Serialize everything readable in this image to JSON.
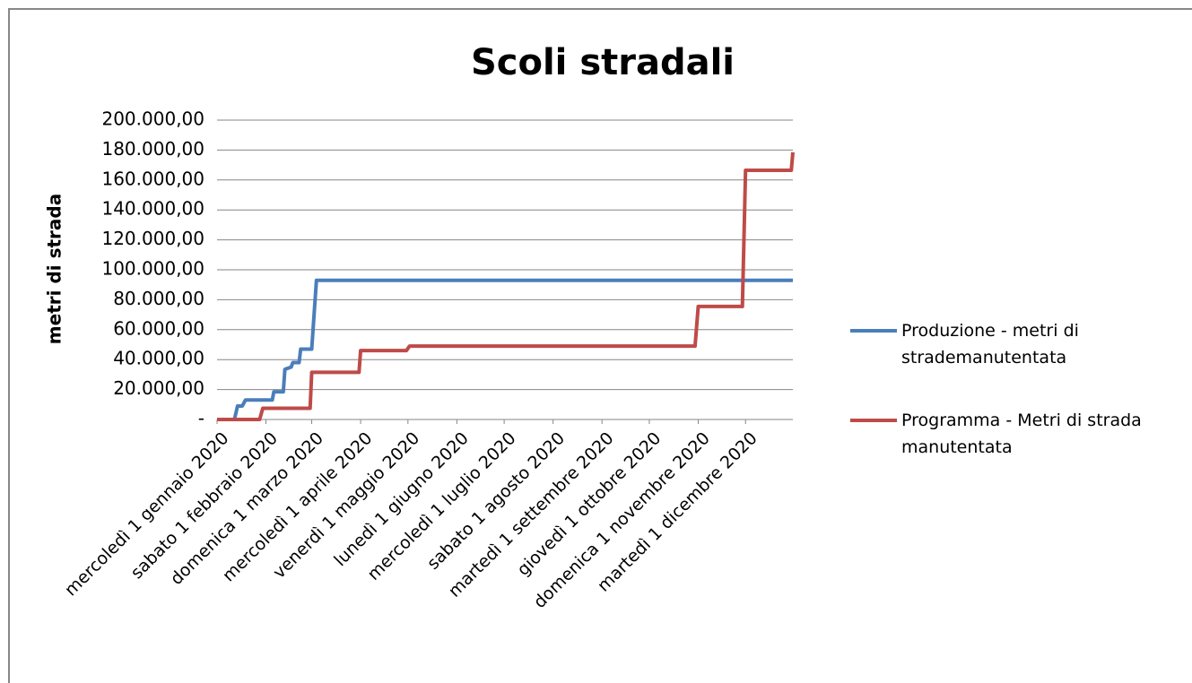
{
  "chart_data": {
    "type": "line",
    "title": "Scoli stradali",
    "y_label": "metri di strada",
    "xlim": [
      "2020-01-01",
      "2020-12-31"
    ],
    "xticks": [
      {
        "value": "2020-01-01",
        "label": "mercoledì 1 gennaio 2020"
      },
      {
        "value": "2020-02-01",
        "label": "sabato 1 febbraio 2020"
      },
      {
        "value": "2020-03-01",
        "label": "domenica 1 marzo 2020"
      },
      {
        "value": "2020-04-01",
        "label": "mercoledì 1 aprile 2020"
      },
      {
        "value": "2020-05-01",
        "label": "venerdì 1 maggio 2020"
      },
      {
        "value": "2020-06-01",
        "label": "lunedì 1 giugno 2020"
      },
      {
        "value": "2020-07-01",
        "label": "mercoledì 1 luglio 2020"
      },
      {
        "value": "2020-08-01",
        "label": "sabato 1 agosto 2020"
      },
      {
        "value": "2020-09-01",
        "label": "martedì 1 settembre 2020"
      },
      {
        "value": "2020-10-01",
        "label": "giovedì 1 ottobre 2020"
      },
      {
        "value": "2020-11-01",
        "label": "domenica 1 novembre 2020"
      },
      {
        "value": "2020-12-01",
        "label": "martedì 1 dicembre 2020"
      }
    ],
    "ylim": [
      0,
      200000
    ],
    "yticks": [
      {
        "value": 0,
        "label": "-"
      },
      {
        "value": 20000,
        "label": "20.000,00"
      },
      {
        "value": 40000,
        "label": "40.000,00"
      },
      {
        "value": 60000,
        "label": "60.000,00"
      },
      {
        "value": 80000,
        "label": "80.000,00"
      },
      {
        "value": 100000,
        "label": "100.000,00"
      },
      {
        "value": 120000,
        "label": "120.000,00"
      },
      {
        "value": 140000,
        "label": "140.000,00"
      },
      {
        "value": 160000,
        "label": "160.000,00"
      },
      {
        "value": 180000,
        "label": "180.000,00"
      },
      {
        "value": 200000,
        "label": "200.000,00"
      }
    ],
    "grid": true,
    "legend": "right",
    "series": [
      {
        "name": "Produzione - metri di strademanutentata",
        "color": "#4a7ebb",
        "x": [
          "2020-01-01",
          "2020-01-12",
          "2020-01-14",
          "2020-01-17",
          "2020-01-19",
          "2020-02-05",
          "2020-02-06",
          "2020-02-12",
          "2020-02-13",
          "2020-02-17",
          "2020-02-18",
          "2020-02-22",
          "2020-02-23",
          "2020-03-01",
          "2020-03-04",
          "2020-12-31"
        ],
        "values": [
          0,
          0,
          9000,
          9000,
          13000,
          13000,
          18500,
          18500,
          33500,
          35000,
          38000,
          38000,
          47000,
          47000,
          93000,
          93000
        ]
      },
      {
        "name": "Programma - Metri di strada manutentata",
        "color": "#be4b48",
        "x": [
          "2020-01-01",
          "2020-01-28",
          "2020-01-30",
          "2020-02-29",
          "2020-03-01",
          "2020-03-31",
          "2020-04-01",
          "2020-04-30",
          "2020-05-02",
          "2020-10-30",
          "2020-11-01",
          "2020-11-29",
          "2020-12-01",
          "2020-12-30",
          "2020-12-31"
        ],
        "values": [
          0,
          0,
          7500,
          7500,
          31500,
          31500,
          46000,
          46000,
          49000,
          49000,
          75500,
          75500,
          166500,
          166500,
          178500
        ]
      }
    ]
  }
}
